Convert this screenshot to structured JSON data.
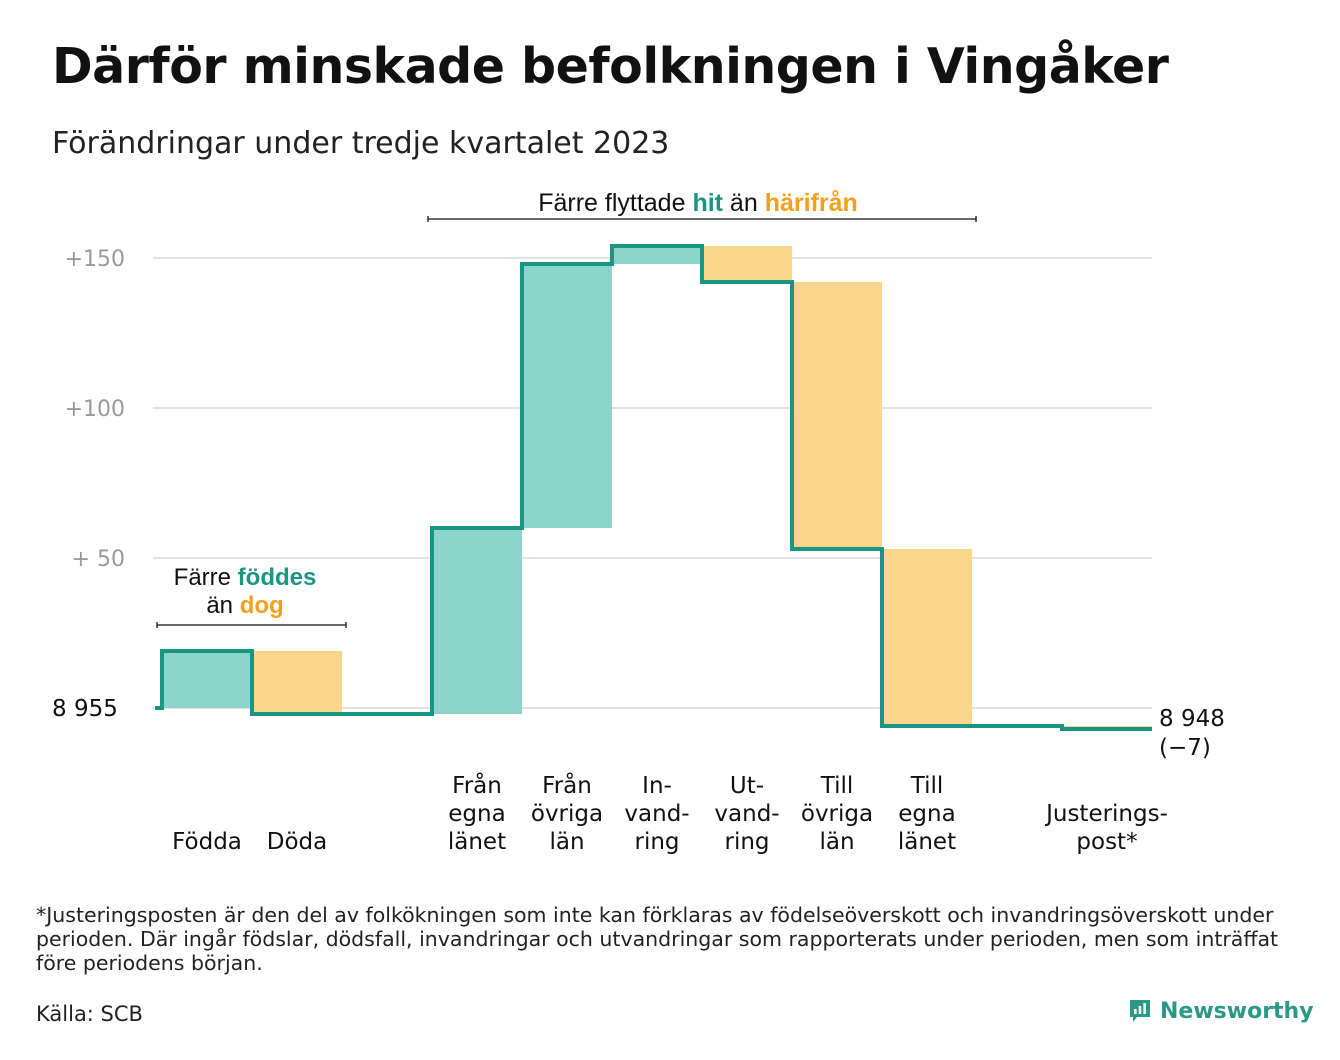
{
  "title": "Därför minskade befolkningen i Vingåker",
  "subtitle": "Förändringar under tredje kvartalet 2023",
  "colors": {
    "increase": "#8dd4cb",
    "decrease": "#fad58c",
    "line": "#1a9584",
    "grid": "#e3e3e3",
    "tick": "#9a9a9a",
    "accent_teal": "#1a9584",
    "accent_orange": "#f3a01d"
  },
  "annotations": {
    "births": {
      "line1_prefix": "Färre",
      "line1_highlight": "föddes",
      "line2_prefix": "än",
      "line2_highlight": "dog"
    },
    "migration": {
      "prefix": "Färre flyttade",
      "highlight1": "hit",
      "middle": "än",
      "highlight2": "härifrån"
    }
  },
  "chart_data": {
    "type": "waterfall",
    "start_value": 8955,
    "start_label": "8  955",
    "end_value": 8948,
    "end_label": "8 948",
    "end_change_label": "(−7)",
    "y_tick_labels": [
      "+150",
      "+100",
      "+  50"
    ],
    "y_tick_values": [
      150,
      100,
      50
    ],
    "ylim": [
      -10,
      160
    ],
    "grid": true,
    "categories": [
      {
        "label": [
          "Födda"
        ],
        "change": 19,
        "kind": "increase"
      },
      {
        "label": [
          "Döda"
        ],
        "change": -21,
        "kind": "decrease"
      },
      {
        "label": [],
        "change": 0,
        "kind": "none"
      },
      {
        "label": [
          "Från",
          "egna",
          "länet"
        ],
        "change": 62,
        "kind": "increase"
      },
      {
        "label": [
          "Från",
          "övriga",
          "län"
        ],
        "change": 88,
        "kind": "increase"
      },
      {
        "label": [
          "In-",
          "vand-",
          "ring"
        ],
        "change": 6,
        "kind": "increase"
      },
      {
        "label": [
          "Ut-",
          "vand-",
          "ring"
        ],
        "change": -12,
        "kind": "decrease"
      },
      {
        "label": [
          "Till",
          "övriga",
          "län"
        ],
        "change": -89,
        "kind": "decrease"
      },
      {
        "label": [
          "Till",
          "egna",
          "länet"
        ],
        "change": -59,
        "kind": "decrease"
      },
      {
        "label": [],
        "change": 0,
        "kind": "none"
      },
      {
        "label": [
          "Justerings-",
          "post*"
        ],
        "change": -1,
        "kind": "decrease"
      }
    ]
  },
  "footnote": "*Justeringsposten är den del av folkökningen som inte kan förklaras av födelseöverskott och invandringsöverskott under perioden. Där ingår födslar, dödsfall, invandringar och utvandringar som rapporterats under perioden, men som inträffat före periodens början.",
  "source": "Källa: SCB",
  "brand": {
    "name": "Newsworthy",
    "icon": "newsworthy-logo-icon"
  }
}
